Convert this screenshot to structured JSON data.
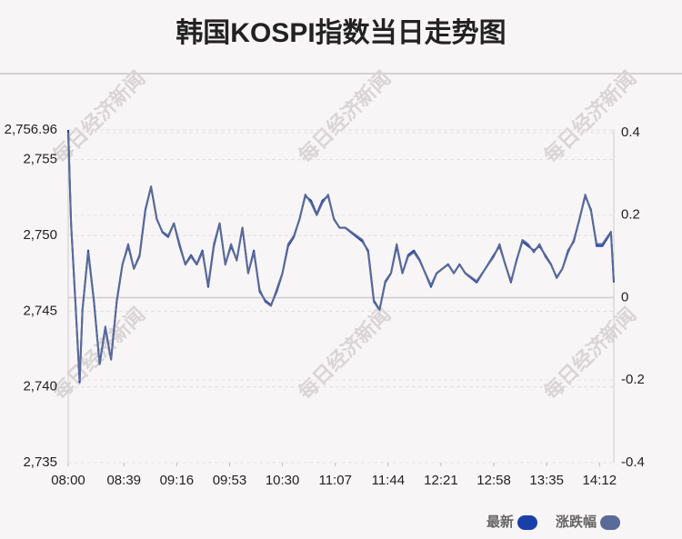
{
  "chart_data": {
    "type": "line",
    "title": "韩国KOSPI指数当日走势图",
    "watermark": "每日经济新闻",
    "x": [
      0,
      2,
      5,
      8,
      10,
      14,
      18,
      22,
      26,
      30,
      34,
      38,
      42,
      46,
      50,
      54,
      58,
      62,
      66,
      70,
      74,
      78,
      82,
      86,
      90,
      94,
      98,
      102,
      106,
      110,
      114,
      118,
      122,
      126,
      130,
      134,
      138,
      142,
      146,
      150,
      154,
      158,
      162,
      166,
      170,
      174,
      178,
      182,
      186,
      190,
      194,
      198,
      202,
      206,
      210,
      214,
      218,
      222,
      226,
      230,
      234,
      238,
      242,
      246,
      250,
      254,
      258,
      262,
      266,
      270,
      274,
      278,
      282,
      286,
      290,
      294,
      298,
      302,
      306,
      310,
      314,
      318,
      322,
      326,
      330,
      334,
      338,
      342,
      346,
      350,
      354,
      358,
      362,
      366,
      370,
      374,
      378,
      380,
      382
    ],
    "series": [
      {
        "name": "最新",
        "color": "#1a3fa8",
        "values": [
          2756.96,
          2750.8,
          2745.7,
          2740.3,
          2745.1,
          2749.0,
          2745.7,
          2741.5,
          2743.9,
          2741.8,
          2745.7,
          2748.1,
          2749.3,
          2747.8,
          2748.7,
          2751.7,
          2753.2,
          2751.1,
          2750.2,
          2749.9,
          2750.8,
          2749.3,
          2748.1,
          2748.7,
          2748.1,
          2749.0,
          2746.6,
          2749.3,
          2750.8,
          2748.1,
          2749.3,
          2748.4,
          2750.5,
          2747.5,
          2749.0,
          2746.3,
          2745.7,
          2745.4,
          2746.3,
          2747.5,
          2749.3,
          2749.9,
          2751.1,
          2752.6,
          2752.3,
          2751.4,
          2752.3,
          2752.6,
          2751.1,
          2750.5,
          2750.5,
          2750.2,
          2749.9,
          2749.6,
          2749.0,
          2745.7,
          2745.1,
          2746.9,
          2747.5,
          2749.3,
          2747.5,
          2748.7,
          2749.0,
          2748.4,
          2747.5,
          2746.6,
          2747.5,
          2747.8,
          2748.1,
          2747.5,
          2748.1,
          2747.5,
          2747.2,
          2746.9,
          2747.5,
          2748.1,
          2748.7,
          2749.3,
          2748.1,
          2746.9,
          2748.4,
          2749.6,
          2749.3,
          2749.0,
          2749.3,
          2748.7,
          2748.1,
          2747.2,
          2747.8,
          2749.0,
          2749.6,
          2751.1,
          2752.6,
          2751.7,
          2749.3,
          2749.3,
          2749.9,
          2750.2,
          2746.9
        ]
      },
      {
        "name": "涨跌幅",
        "color": "#5a6b98",
        "axis": "y2",
        "values": [
          0.4,
          0.18,
          -0.01,
          -0.2,
          -0.03,
          0.11,
          -0.01,
          -0.16,
          -0.07,
          -0.15,
          -0.01,
          0.08,
          0.13,
          0.07,
          0.1,
          0.21,
          0.27,
          0.19,
          0.16,
          0.15,
          0.18,
          0.13,
          0.08,
          0.1,
          0.08,
          0.11,
          0.03,
          0.13,
          0.18,
          0.08,
          0.13,
          0.09,
          0.17,
          0.06,
          0.11,
          0.02,
          -0.01,
          -0.02,
          0.02,
          0.06,
          0.13,
          0.15,
          0.19,
          0.25,
          0.23,
          0.2,
          0.23,
          0.25,
          0.19,
          0.17,
          0.17,
          0.16,
          0.15,
          0.14,
          0.11,
          -0.01,
          -0.03,
          0.04,
          0.06,
          0.13,
          0.06,
          0.1,
          0.11,
          0.09,
          0.06,
          0.03,
          0.06,
          0.07,
          0.08,
          0.06,
          0.08,
          0.06,
          0.05,
          0.04,
          0.06,
          0.08,
          0.1,
          0.13,
          0.08,
          0.04,
          0.09,
          0.14,
          0.13,
          0.11,
          0.13,
          0.1,
          0.08,
          0.05,
          0.07,
          0.11,
          0.14,
          0.19,
          0.25,
          0.21,
          0.13,
          0.13,
          0.15,
          0.16,
          0.04
        ]
      }
    ],
    "xlim": [
      0,
      382
    ],
    "xticks": [
      {
        "value": 0,
        "label": "08:00"
      },
      {
        "value": 39,
        "label": "08:39"
      },
      {
        "value": 76,
        "label": "09:16"
      },
      {
        "value": 113,
        "label": "09:53"
      },
      {
        "value": 150,
        "label": "10:30"
      },
      {
        "value": 187,
        "label": "11:07"
      },
      {
        "value": 224,
        "label": "11:44"
      },
      {
        "value": 261,
        "label": "12:21"
      },
      {
        "value": 298,
        "label": "12:58"
      },
      {
        "value": 335,
        "label": "13:35"
      },
      {
        "value": 372,
        "label": "14:12"
      }
    ],
    "ylim": [
      2735,
      2756.96
    ],
    "yticks": [
      {
        "value": 2735,
        "label": "2,735"
      },
      {
        "value": 2740,
        "label": "2,740"
      },
      {
        "value": 2745,
        "label": "2,745"
      },
      {
        "value": 2750,
        "label": "2,750"
      },
      {
        "value": 2755,
        "label": "2,755"
      },
      {
        "value": 2756.96,
        "label": "2,756.96"
      }
    ],
    "y2lim": [
      -0.4,
      0.4
    ],
    "y2ticks": [
      -0.4,
      -0.2,
      0,
      0.2,
      0.4
    ],
    "grid": true,
    "legend": "bottom-right"
  }
}
